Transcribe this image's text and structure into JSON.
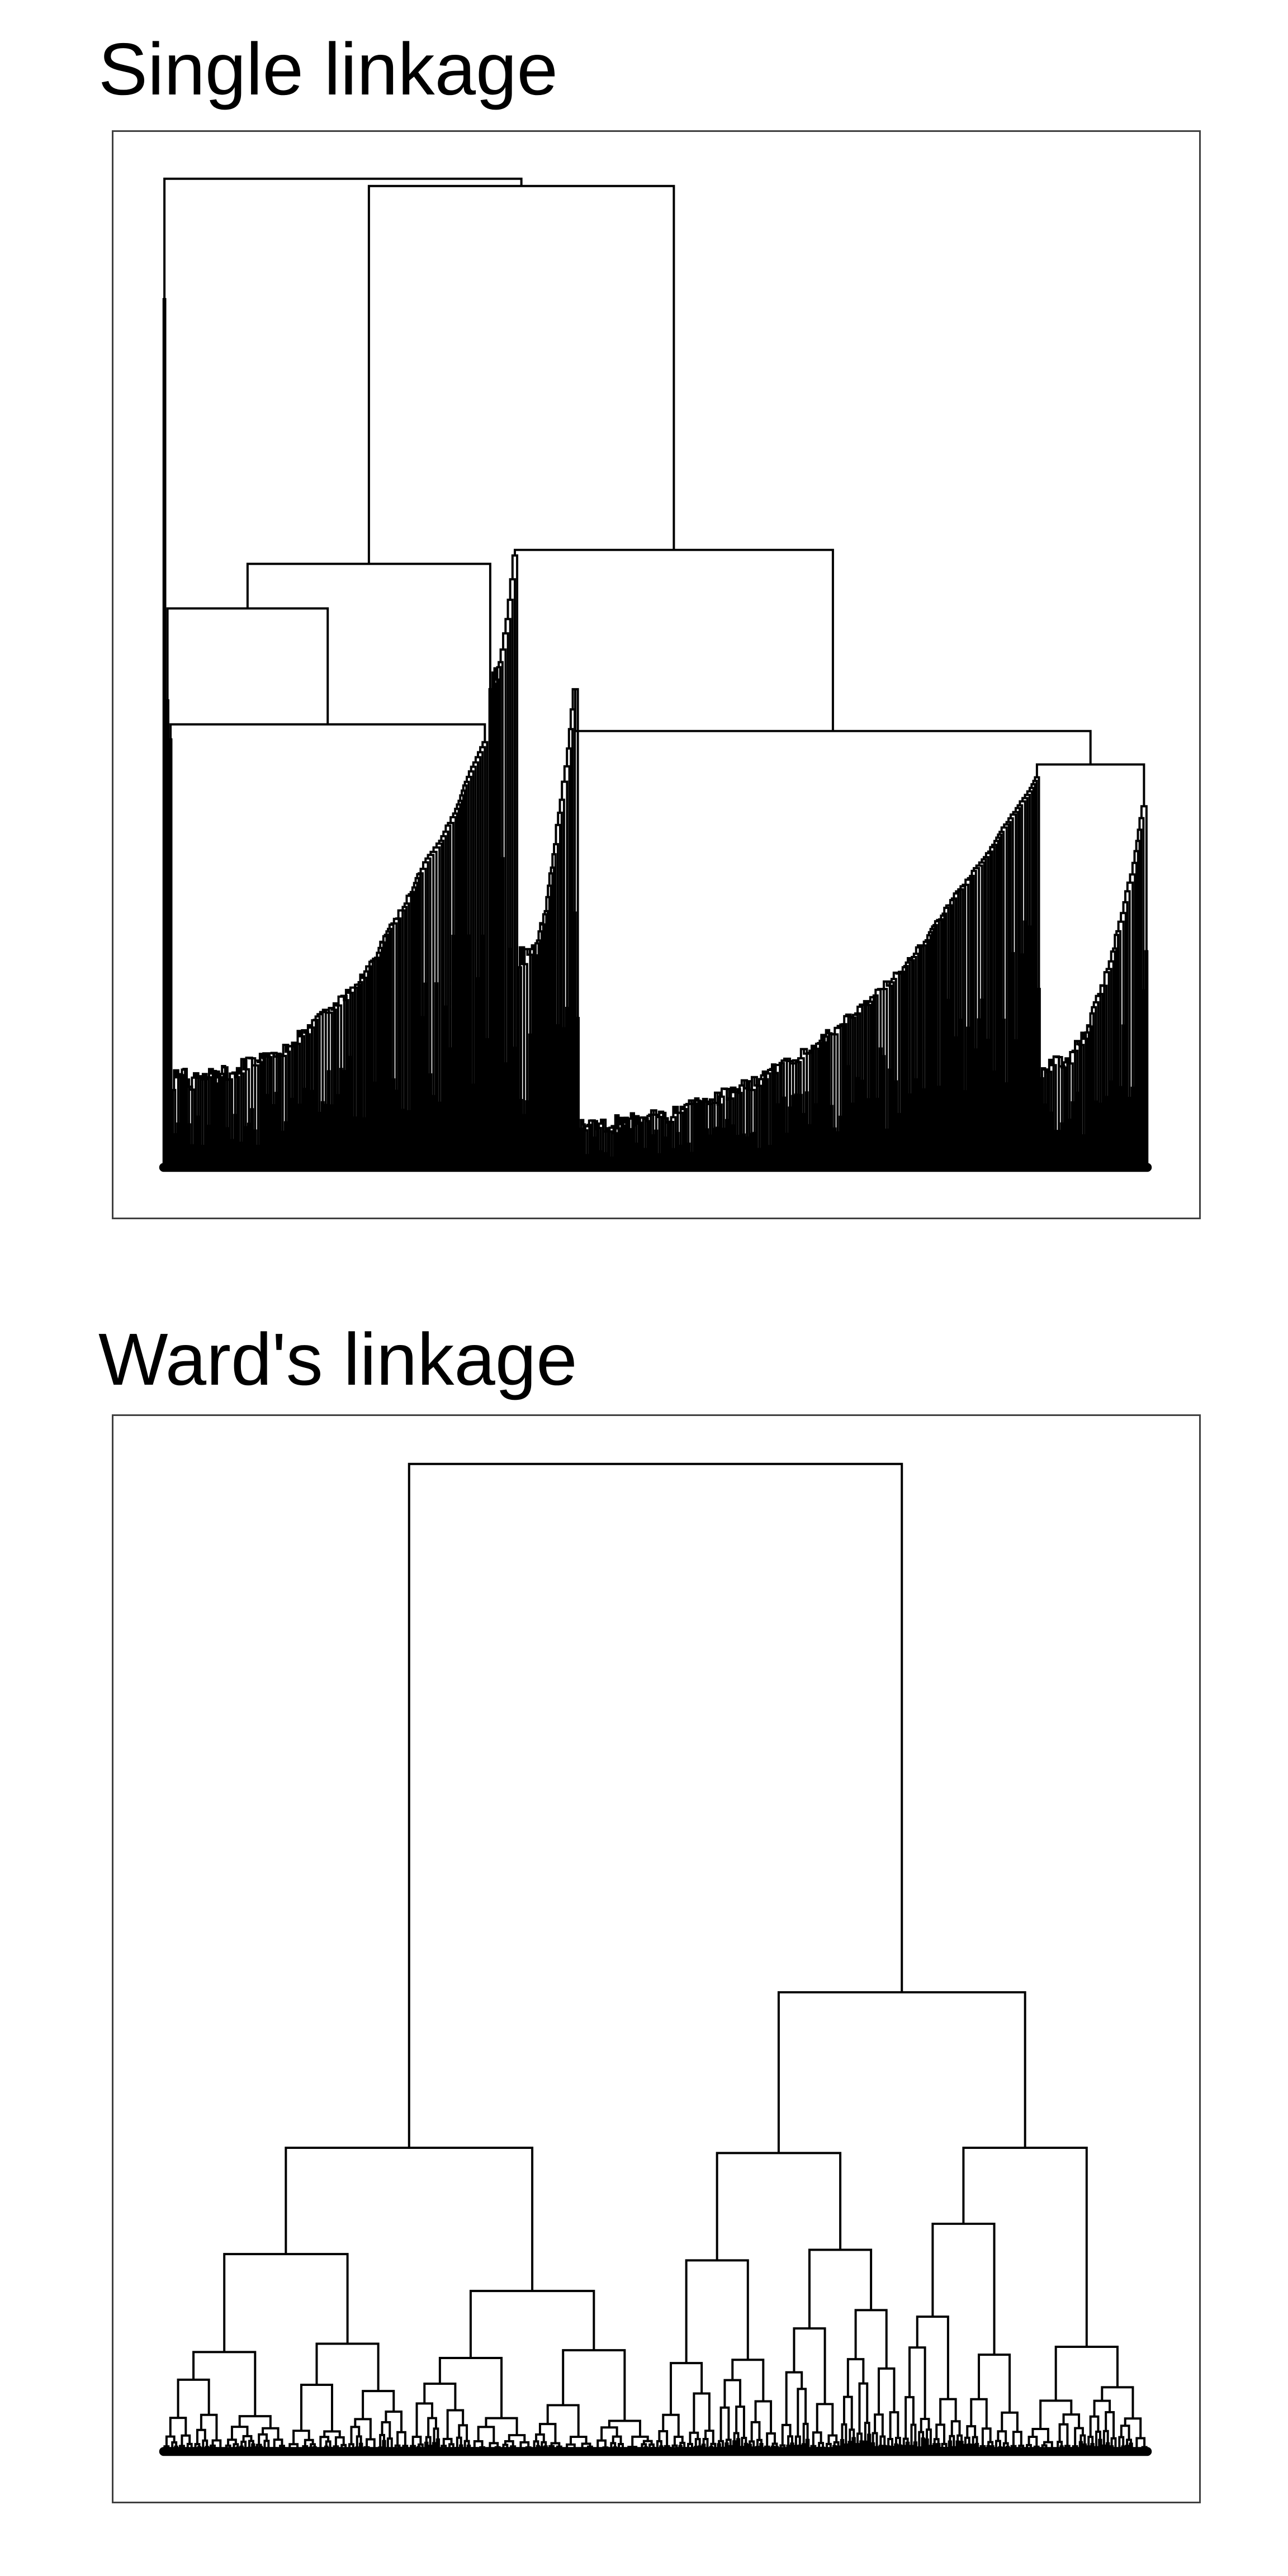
{
  "panels": [
    {
      "title": "Single linkage",
      "method": "single",
      "shape": "chaining",
      "color": "#000000"
    },
    {
      "title": "Ward's linkage",
      "method": "ward",
      "shape": "balanced",
      "color": "#000000"
    }
  ]
}
